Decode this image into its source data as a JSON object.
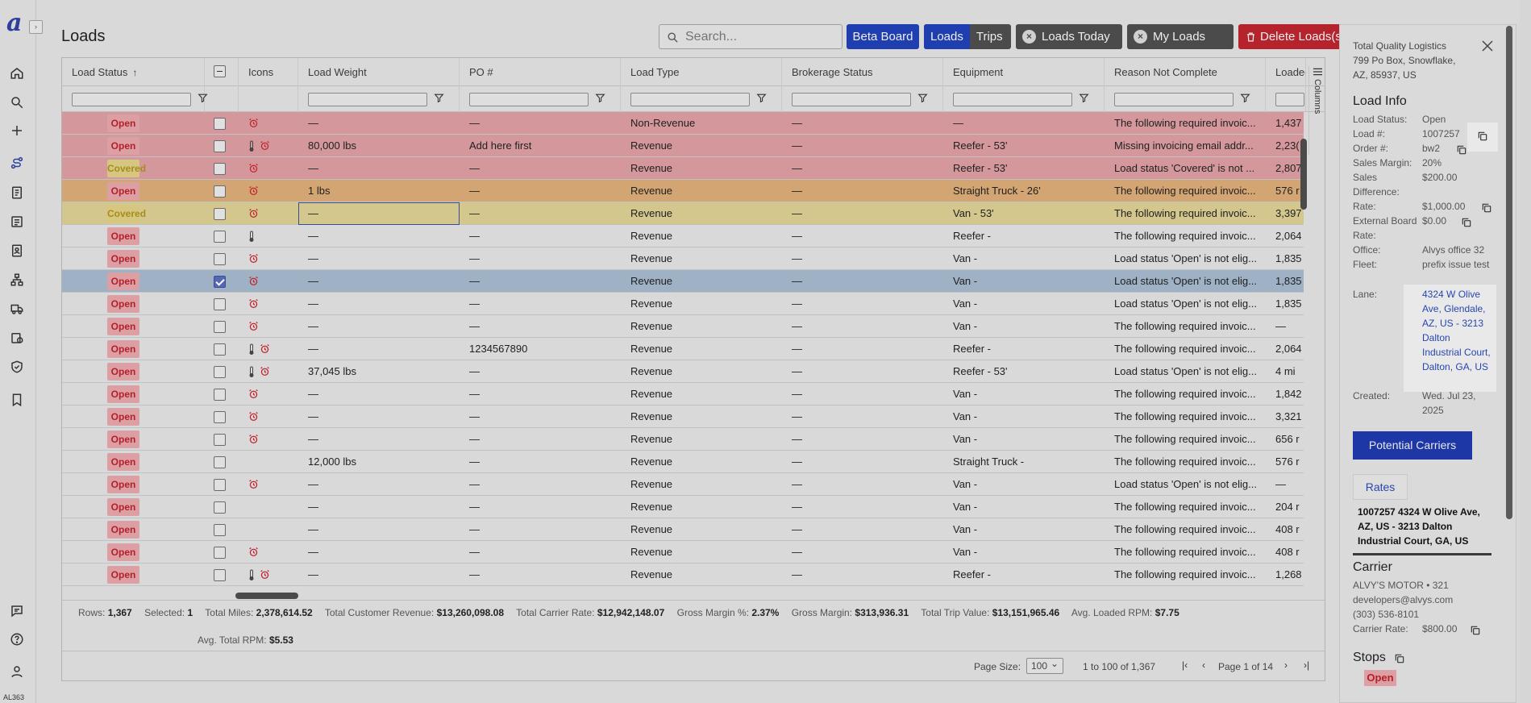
{
  "nav": {
    "logo": "a",
    "icons": [
      "home-icon",
      "search-icon",
      "plus-icon",
      "route-icon",
      "invoice-icon",
      "document-icon",
      "contacts-icon",
      "org-chart-icon",
      "truck-icon",
      "money-icon",
      "shield-icon",
      "bookmark-icon",
      "chat-icon",
      "help-icon",
      "user-icon"
    ],
    "version": "AL363"
  },
  "header": {
    "title": "Loads",
    "search_placeholder": "Search...",
    "beta_board": "Beta Board",
    "seg_loads": "Loads",
    "seg_trips": "Trips",
    "loads_today": "Loads Today",
    "my_loads": "My Loads",
    "delete_loads": "Delete Loads(s)"
  },
  "grid": {
    "columns": {
      "status": "Load Status",
      "icons": "Icons",
      "weight": "Load Weight",
      "po": "PO #",
      "type": "Load Type",
      "brokerage": "Brokerage Status",
      "equipment": "Equipment",
      "reason": "Reason Not Complete",
      "loaded": "Loaded"
    },
    "columns_tab": "Columns",
    "rows": [
      {
        "status": "Open",
        "checked": false,
        "therm": false,
        "alarm": true,
        "weight": "—",
        "po": "—",
        "type": "Non-Revenue",
        "brokerage": "—",
        "equipment": "—",
        "reason": "The following required invoic...",
        "loaded": "1,437",
        "bg": "#d4989c"
      },
      {
        "status": "Open",
        "checked": false,
        "therm": true,
        "alarm": true,
        "weight": "80,000 lbs",
        "po": "Add here first",
        "type": "Revenue",
        "brokerage": "—",
        "equipment": "Reefer - 53'",
        "reason": "Missing invoicing email addr...",
        "loaded": "2,23(",
        "bg": "#d4989c"
      },
      {
        "status": "Covered",
        "checked": false,
        "therm": false,
        "alarm": true,
        "weight": "—",
        "po": "—",
        "type": "Revenue",
        "brokerage": "—",
        "equipment": "Reefer - 53'",
        "reason": "Load status 'Covered' is not ...",
        "loaded": "2,807",
        "bg": "#d4989c"
      },
      {
        "status": "Open",
        "checked": false,
        "therm": false,
        "alarm": true,
        "weight": "1 lbs",
        "po": "—",
        "type": "Revenue",
        "brokerage": "—",
        "equipment": "Straight Truck - 26'",
        "reason": "The following required invoic...",
        "loaded": "576 r",
        "bg": "#d3a573"
      },
      {
        "status": "Covered",
        "checked": false,
        "therm": false,
        "alarm": true,
        "weight": "—",
        "po": "—",
        "type": "Revenue",
        "brokerage": "—",
        "equipment": "Van - 53'",
        "reason": "The following required invoic...",
        "loaded": "3,397",
        "bg": "#d4c78d"
      },
      {
        "status": "Open",
        "checked": false,
        "therm": true,
        "alarm": false,
        "weight": "—",
        "po": "—",
        "type": "Revenue",
        "brokerage": "—",
        "equipment": "Reefer -",
        "reason": "The following required invoic...",
        "loaded": "2,064",
        "bg": "#d9d9d9"
      },
      {
        "status": "Open",
        "checked": false,
        "therm": false,
        "alarm": true,
        "weight": "—",
        "po": "—",
        "type": "Revenue",
        "brokerage": "—",
        "equipment": "Van -",
        "reason": "Load status 'Open' is not elig...",
        "loaded": "1,835",
        "bg": "#d9d9d9"
      },
      {
        "status": "Open",
        "checked": true,
        "therm": false,
        "alarm": true,
        "weight": "—",
        "po": "—",
        "type": "Revenue",
        "brokerage": "—",
        "equipment": "Van -",
        "reason": "Load status 'Open' is not elig...",
        "loaded": "1,835",
        "bg": "#9fb1c4"
      },
      {
        "status": "Open",
        "checked": false,
        "therm": false,
        "alarm": true,
        "weight": "—",
        "po": "—",
        "type": "Revenue",
        "brokerage": "—",
        "equipment": "Van -",
        "reason": "Load status 'Open' is not elig...",
        "loaded": "1,835",
        "bg": "#d9d9d9"
      },
      {
        "status": "Open",
        "checked": false,
        "therm": false,
        "alarm": true,
        "weight": "—",
        "po": "—",
        "type": "Revenue",
        "brokerage": "—",
        "equipment": "Van -",
        "reason": "The following required invoic...",
        "loaded": "—",
        "bg": "#d9d9d9"
      },
      {
        "status": "Open",
        "checked": false,
        "therm": true,
        "alarm": true,
        "weight": "—",
        "po": "1234567890",
        "type": "Revenue",
        "brokerage": "—",
        "equipment": "Reefer -",
        "reason": "The following required invoic...",
        "loaded": "2,064",
        "bg": "#d9d9d9"
      },
      {
        "status": "Open",
        "checked": false,
        "therm": true,
        "alarm": true,
        "weight": "37,045 lbs",
        "po": "—",
        "type": "Revenue",
        "brokerage": "—",
        "equipment": "Reefer - 53'",
        "reason": "Load status 'Open' is not elig...",
        "loaded": "4 mi",
        "bg": "#d9d9d9"
      },
      {
        "status": "Open",
        "checked": false,
        "therm": false,
        "alarm": true,
        "weight": "—",
        "po": "—",
        "type": "Revenue",
        "brokerage": "—",
        "equipment": "Van -",
        "reason": "The following required invoic...",
        "loaded": "1,842",
        "bg": "#d9d9d9"
      },
      {
        "status": "Open",
        "checked": false,
        "therm": false,
        "alarm": true,
        "weight": "—",
        "po": "—",
        "type": "Revenue",
        "brokerage": "—",
        "equipment": "Van -",
        "reason": "The following required invoic...",
        "loaded": "3,321",
        "bg": "#d9d9d9"
      },
      {
        "status": "Open",
        "checked": false,
        "therm": false,
        "alarm": true,
        "weight": "—",
        "po": "—",
        "type": "Revenue",
        "brokerage": "—",
        "equipment": "Van -",
        "reason": "The following required invoic...",
        "loaded": "656 r",
        "bg": "#d9d9d9"
      },
      {
        "status": "Open",
        "checked": false,
        "therm": false,
        "alarm": false,
        "weight": "12,000 lbs",
        "po": "—",
        "type": "Revenue",
        "brokerage": "—",
        "equipment": "Straight Truck -",
        "reason": "The following required invoic...",
        "loaded": "576 r",
        "bg": "#d9d9d9"
      },
      {
        "status": "Open",
        "checked": false,
        "therm": false,
        "alarm": true,
        "weight": "—",
        "po": "—",
        "type": "Revenue",
        "brokerage": "—",
        "equipment": "Van -",
        "reason": "Load status 'Open' is not elig...",
        "loaded": "—",
        "bg": "#d9d9d9"
      },
      {
        "status": "Open",
        "checked": false,
        "therm": false,
        "alarm": false,
        "weight": "—",
        "po": "—",
        "type": "Revenue",
        "brokerage": "—",
        "equipment": "Van -",
        "reason": "The following required invoic...",
        "loaded": "204 r",
        "bg": "#d9d9d9"
      },
      {
        "status": "Open",
        "checked": false,
        "therm": false,
        "alarm": false,
        "weight": "—",
        "po": "—",
        "type": "Revenue",
        "brokerage": "—",
        "equipment": "Van -",
        "reason": "The following required invoic...",
        "loaded": "408 r",
        "bg": "#d9d9d9"
      },
      {
        "status": "Open",
        "checked": false,
        "therm": false,
        "alarm": true,
        "weight": "—",
        "po": "—",
        "type": "Revenue",
        "brokerage": "—",
        "equipment": "Van -",
        "reason": "The following required invoic...",
        "loaded": "408 r",
        "bg": "#d9d9d9"
      },
      {
        "status": "Open",
        "checked": false,
        "therm": true,
        "alarm": true,
        "weight": "—",
        "po": "—",
        "type": "Revenue",
        "brokerage": "—",
        "equipment": "Reefer -",
        "reason": "The following required invoic...",
        "loaded": "1,268",
        "bg": "#d9d9d9"
      }
    ]
  },
  "summary": {
    "rows_label": "Rows:",
    "rows": "1,367",
    "selected_label": "Selected:",
    "selected": "1",
    "miles_label": "Total Miles:",
    "miles": "2,378,614.52",
    "revenue_label": "Total Customer Revenue:",
    "revenue": "$13,260,098.08",
    "carrier_label": "Total Carrier Rate:",
    "carrier": "$12,942,148.07",
    "gmp_label": "Gross Margin %:",
    "gmp": "2.37%",
    "gm_label": "Gross Margin:",
    "gm": "$313,936.31",
    "trip_label": "Total Trip Value:",
    "trip": "$13,151,965.46",
    "loaded_rpm_label": "Avg. Loaded RPM:",
    "loaded_rpm": "$7.75",
    "total_rpm_label": "Avg. Total RPM:",
    "total_rpm": "$5.53"
  },
  "pager": {
    "size_label": "Page Size:",
    "size": "100",
    "range": "1 to 100 of 1,367",
    "page": "Page 1 of 14"
  },
  "panel": {
    "addr1": "Total Quality Logistics",
    "addr2": "799 Po Box, Snowflake,",
    "addr3": "AZ, 85937, US",
    "load_info": "Load Info",
    "k_status": "Load Status:",
    "v_status": "Open",
    "k_load": "Load #:",
    "v_load": "1007257",
    "k_order": "Order #:",
    "v_order": "bw2",
    "k_margin": "Sales Margin:",
    "v_margin": "20%",
    "k_diff": "Sales Difference:",
    "v_diff": "$200.00",
    "k_rate": "Rate:",
    "v_rate": "$1,000.00",
    "k_ext": "External Board Rate:",
    "v_ext": "$0.00",
    "k_office": "Office:",
    "v_office": "Alvys office 32",
    "k_fleet": "Fleet:",
    "v_fleet": "prefix issue test",
    "k_lane": "Lane:",
    "v_lane": "4324 W Olive Ave, Glendale, AZ, US - 3213 Dalton Industrial Court, Dalton, GA, US",
    "k_created": "Created:",
    "v_created": "Wed. Jul 23, 2025",
    "potential_carriers": "Potential Carriers",
    "rates": "Rates",
    "rates_summary": "1007257 4324 W Olive Ave, AZ, US - 3213 Dalton Industrial Court, GA, US",
    "carrier_title": "Carrier",
    "carrier_name": "ALVY'S MOTOR • 321",
    "carrier_email": "developers@alvys.com",
    "carrier_phone": "(303) 536-8101",
    "k_carrier_rate": "Carrier Rate:",
    "v_carrier_rate": "$800.00",
    "stops_title": "Stops",
    "stop_status": "Open"
  }
}
